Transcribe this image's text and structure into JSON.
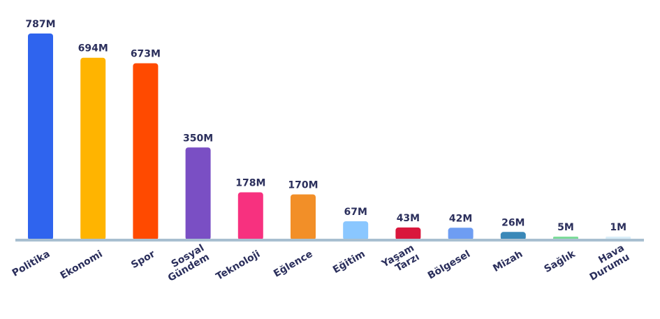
{
  "chart_data": {
    "type": "bar",
    "title": "",
    "xlabel": "",
    "ylabel": "",
    "unit_suffix": "M",
    "ylim": [
      0,
      800
    ],
    "grid": false,
    "legend": "none",
    "categories": [
      [
        "Politika"
      ],
      [
        "Ekonomi"
      ],
      [
        "Spor"
      ],
      [
        "Sosyal",
        "Gündem"
      ],
      [
        "Teknoloji"
      ],
      [
        "Eğlence"
      ],
      [
        "Eğitim"
      ],
      [
        "Yaşam",
        "Tarzı"
      ],
      [
        "Bölgesel"
      ],
      [
        "Mizah"
      ],
      [
        "Sağlık"
      ],
      [
        "Hava",
        "Durumu"
      ]
    ],
    "values": [
      787,
      694,
      673,
      350,
      178,
      170,
      67,
      43,
      42,
      26,
      5,
      1
    ],
    "value_labels": [
      "787M",
      "694M",
      "673M",
      "350M",
      "178M",
      "170M",
      "67M",
      "43M",
      "42M",
      "26M",
      "5M",
      "1M"
    ],
    "colors": [
      "#2f64ee",
      "#ffb400",
      "#ff4a00",
      "#7a4fc4",
      "#f7317f",
      "#f28f28",
      "#8ac7ff",
      "#d9173c",
      "#6e9df2",
      "#3a88b8",
      "#7ddc9a",
      "#d9edf8"
    ],
    "axis_color": "#a8bfd0"
  }
}
